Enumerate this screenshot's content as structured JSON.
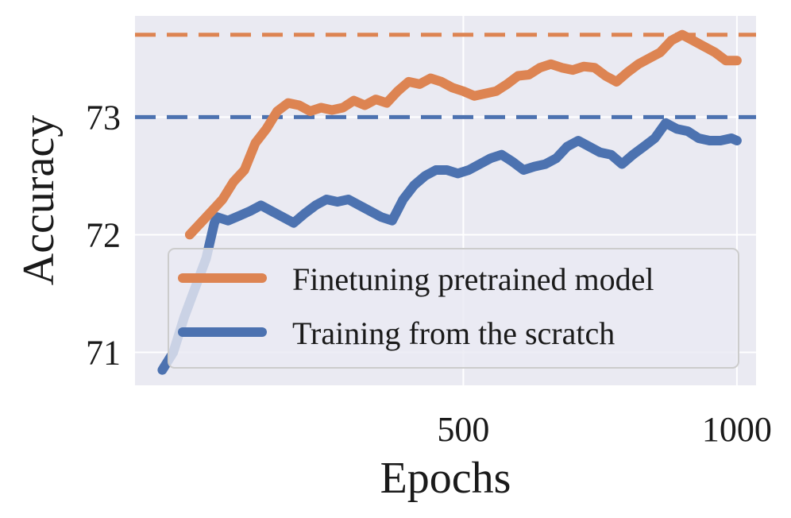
{
  "chart_data": {
    "type": "line",
    "xlabel": "Epochs",
    "ylabel": "Accuracy",
    "xlim": [
      -100,
      1035
    ],
    "ylim": [
      70.72,
      73.86
    ],
    "x_ticks": [
      500,
      1000
    ],
    "x_tick_labels": [
      "500",
      "1000"
    ],
    "y_ticks": [
      71,
      72,
      73
    ],
    "y_tick_labels": [
      "71",
      "72",
      "73"
    ],
    "grid": true,
    "legend_position": "lower-right",
    "background": "#eaeaf2",
    "series": [
      {
        "name": "Finetuning pretrained model",
        "color": "#dd8452",
        "x": [
          0,
          20,
          40,
          60,
          80,
          100,
          120,
          140,
          160,
          180,
          200,
          220,
          240,
          260,
          280,
          300,
          320,
          340,
          360,
          380,
          400,
          420,
          440,
          460,
          480,
          500,
          520,
          540,
          560,
          580,
          600,
          620,
          640,
          660,
          680,
          700,
          720,
          740,
          760,
          780,
          800,
          820,
          840,
          860,
          880,
          900,
          920,
          940,
          960,
          980,
          1000
        ],
        "values": [
          72.0,
          72.1,
          72.2,
          72.3,
          72.45,
          72.55,
          72.78,
          72.9,
          73.05,
          73.12,
          73.1,
          73.05,
          73.08,
          73.06,
          73.08,
          73.14,
          73.1,
          73.15,
          73.12,
          73.22,
          73.3,
          73.28,
          73.33,
          73.3,
          73.25,
          73.22,
          73.18,
          73.2,
          73.22,
          73.28,
          73.35,
          73.36,
          73.42,
          73.45,
          73.42,
          73.4,
          73.43,
          73.42,
          73.35,
          73.3,
          73.38,
          73.45,
          73.5,
          73.55,
          73.65,
          73.7,
          73.65,
          73.6,
          73.55,
          73.48,
          73.48
        ]
      },
      {
        "name": "Training from the scratch",
        "color": "#4c72b0",
        "x": [
          -50,
          -30,
          -10,
          10,
          30,
          45,
          50,
          70,
          90,
          110,
          130,
          150,
          170,
          190,
          210,
          230,
          250,
          270,
          290,
          310,
          330,
          350,
          370,
          390,
          410,
          430,
          450,
          470,
          490,
          510,
          530,
          550,
          570,
          590,
          610,
          630,
          650,
          670,
          690,
          710,
          730,
          750,
          770,
          790,
          810,
          830,
          850,
          870,
          890,
          910,
          930,
          950,
          970,
          990,
          1000
        ],
        "values": [
          70.85,
          71.0,
          71.3,
          71.55,
          71.8,
          72.1,
          72.15,
          72.12,
          72.16,
          72.2,
          72.25,
          72.2,
          72.15,
          72.1,
          72.18,
          72.25,
          72.3,
          72.28,
          72.3,
          72.25,
          72.2,
          72.15,
          72.12,
          72.3,
          72.42,
          72.5,
          72.55,
          72.55,
          72.52,
          72.55,
          72.6,
          72.65,
          72.68,
          72.62,
          72.55,
          72.58,
          72.6,
          72.65,
          72.75,
          72.8,
          72.75,
          72.7,
          72.68,
          72.6,
          72.68,
          72.75,
          72.82,
          72.95,
          72.9,
          72.88,
          72.82,
          72.8,
          72.8,
          72.82,
          72.8
        ]
      }
    ],
    "reference_lines": [
      {
        "y": 73.7,
        "color": "#dd8452",
        "style": "dashed"
      },
      {
        "y": 73.0,
        "color": "#4c72b0",
        "style": "dashed"
      }
    ]
  }
}
